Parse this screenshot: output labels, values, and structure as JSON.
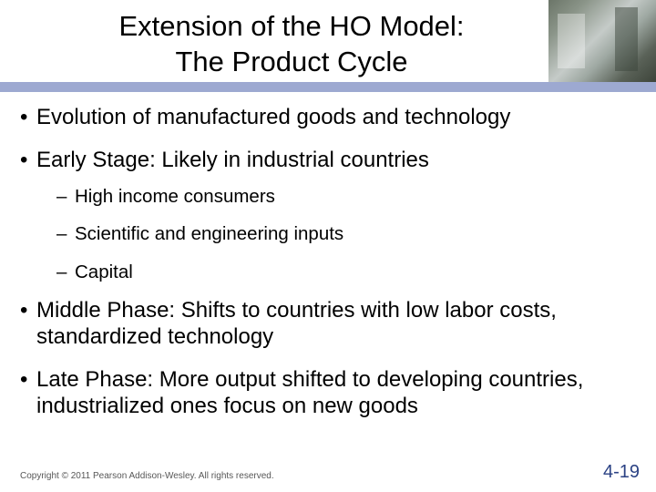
{
  "header": {
    "title_line1": "Extension of the HO Model:",
    "title_line2": "The Product Cycle",
    "accent_bar_color": "#9da9d1"
  },
  "bullets": {
    "b1": "Evolution of manufactured goods and technology",
    "b2": "Early Stage: Likely in industrial countries",
    "b2_sub": {
      "s1": "High income consumers",
      "s2": "Scientific and engineering inputs",
      "s3": "Capital"
    },
    "b3": "Middle Phase: Shifts to countries with low labor costs, standardized technology",
    "b4": "Late Phase: More output shifted to developing countries, industrialized ones focus on new goods"
  },
  "footer": {
    "copyright": "Copyright © 2011 Pearson Addison-Wesley. All rights reserved.",
    "page_number": "4-19",
    "page_number_color": "#2b4284"
  },
  "typography": {
    "title_fontsize": 31,
    "bullet_l1_fontsize": 24,
    "bullet_l2_fontsize": 20.5,
    "footer_fontsize": 10,
    "pagenum_fontsize": 20
  },
  "colors": {
    "background": "#ffffff",
    "text": "#000000",
    "footer_text": "#575757"
  }
}
